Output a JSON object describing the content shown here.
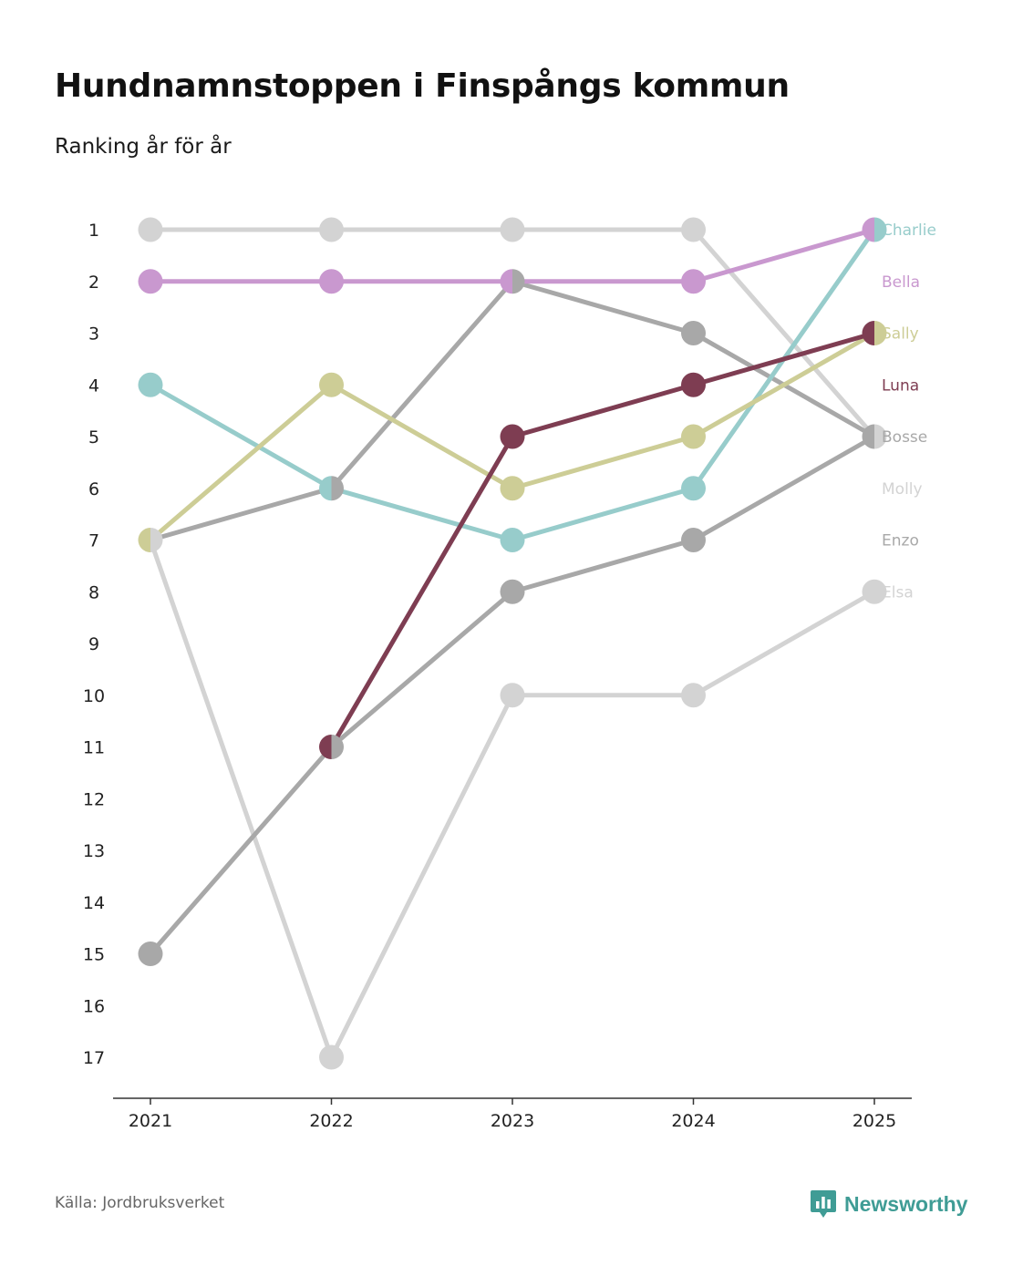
{
  "title": "Hundnamnstoppen i Finspångs kommun",
  "subtitle": "Ranking år för år",
  "source": "Källa: Jordbruksverket",
  "brand": {
    "name": "Newsworthy",
    "icon": "newsworthy-logo-icon",
    "color": "#3f9c95"
  },
  "chart_data": {
    "type": "line",
    "subtype": "bump",
    "title": "Hundnamnstoppen i Finspångs kommun",
    "subtitle": "Ranking år för år",
    "x": [
      "2021",
      "2022",
      "2023",
      "2024",
      "2025"
    ],
    "xlabel": "",
    "ylabel": "",
    "ylim": [
      1,
      17
    ],
    "y_inverted": true,
    "y_ticks": [
      "1",
      "2",
      "3",
      "4",
      "5",
      "6",
      "7",
      "8",
      "9",
      "10",
      "11",
      "12",
      "13",
      "14",
      "15",
      "16",
      "17"
    ],
    "grid": false,
    "legend": "right-end labels",
    "series": [
      {
        "name": "Molly",
        "color": "#d3d3d3",
        "values": [
          1,
          1,
          1,
          1,
          5
        ]
      },
      {
        "name": "Elsa",
        "color": "#d3d3d3",
        "values": [
          7,
          17,
          10,
          10,
          8
        ]
      },
      {
        "name": "Enzo",
        "color": "#a8a8a8",
        "values": [
          15,
          11,
          8,
          7,
          5
        ]
      },
      {
        "name": "Bosse",
        "color": "#a8a8a8",
        "values": [
          7,
          6,
          2,
          3,
          5
        ]
      },
      {
        "name": "Charlie",
        "color": "#97cccb",
        "values": [
          4,
          6,
          7,
          6,
          1
        ]
      },
      {
        "name": "Sally",
        "color": "#cdcd96",
        "values": [
          7,
          4,
          6,
          5,
          3
        ]
      },
      {
        "name": "Luna",
        "color": "#7e3d52",
        "values": [
          null,
          11,
          5,
          4,
          3
        ]
      },
      {
        "name": "Bella",
        "color": "#c998cf",
        "values": [
          2,
          2,
          2,
          2,
          1
        ]
      }
    ],
    "labels_order": [
      {
        "name": "Charlie",
        "rank": 1,
        "color": "#97cccb"
      },
      {
        "name": "Bella",
        "rank": 2,
        "color": "#c998cf"
      },
      {
        "name": "Sally",
        "rank": 3,
        "color": "#cdcd96"
      },
      {
        "name": "Luna",
        "rank": 4,
        "color": "#7e3d52"
      },
      {
        "name": "Bosse",
        "rank": 5,
        "color": "#a8a8a8"
      },
      {
        "name": "Molly",
        "rank": 6,
        "color": "#d3d3d3"
      },
      {
        "name": "Enzo",
        "rank": 7,
        "color": "#a8a8a8"
      },
      {
        "name": "Elsa",
        "rank": 8,
        "color": "#d3d3d3"
      }
    ],
    "shared_point_color": "#6b6b73"
  }
}
